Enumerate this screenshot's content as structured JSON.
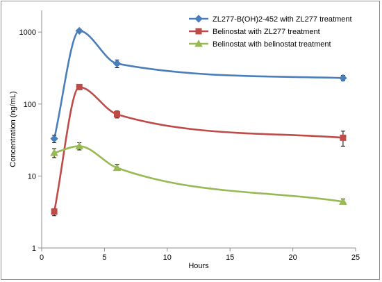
{
  "chart_data": {
    "type": "line",
    "title": "",
    "xlabel": "Hours",
    "ylabel": "Concentration (ng/mL)",
    "xlim": [
      0,
      25
    ],
    "ylim": [
      1,
      2000
    ],
    "y_scale": "log",
    "x_ticks": [
      0,
      5,
      10,
      15,
      20,
      25
    ],
    "y_ticks": [
      1,
      10,
      100,
      1000
    ],
    "x_tick_labels": [
      "0",
      "5",
      "10",
      "15",
      "20",
      "25"
    ],
    "y_tick_labels": [
      "1",
      "10",
      "100",
      "1000"
    ],
    "grid": false,
    "legend_position": "top-right",
    "series": [
      {
        "name": "ZL277-B(OH)2-452 with ZL277 treatment",
        "color": "#4a7ebb",
        "marker": "diamond",
        "x": [
          1,
          3,
          6,
          24
        ],
        "y": [
          33,
          1040,
          365,
          230
        ],
        "err_low": [
          29,
          1000,
          320,
          210
        ],
        "err_high": [
          37,
          1080,
          410,
          250
        ]
      },
      {
        "name": "Belinostat with ZL277 treatment",
        "color": "#be4b48",
        "marker": "square",
        "x": [
          1,
          3,
          6,
          24
        ],
        "y": [
          3.2,
          172,
          72,
          34
        ],
        "err_low": [
          2.8,
          160,
          64,
          26
        ],
        "err_high": [
          3.5,
          180,
          80,
          42
        ]
      },
      {
        "name": "Belinostat with belinostat treatment",
        "color": "#98b954",
        "marker": "triangle",
        "x": [
          1,
          3,
          6,
          24
        ],
        "y": [
          21,
          26,
          13,
          4.4
        ],
        "err_low": [
          18,
          23,
          12,
          4.1
        ],
        "err_high": [
          24,
          29,
          14.5,
          4.8
        ]
      }
    ]
  }
}
